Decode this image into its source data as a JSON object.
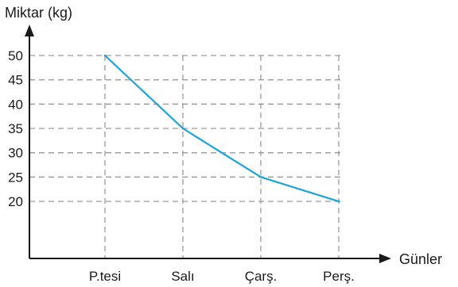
{
  "chart_data": {
    "type": "line",
    "ylabel": "Miktar (kg)",
    "xlabel": "Günler",
    "categories": [
      "P.tesi",
      "Salı",
      "Çarş.",
      "Perş."
    ],
    "yticks": [
      20,
      25,
      30,
      35,
      40,
      45,
      50
    ],
    "series": [
      {
        "values": [
          50,
          35,
          25,
          20
        ]
      }
    ],
    "grid": "dashed",
    "colors": {
      "line": "#1aa3dc",
      "grid": "#9a9a9a",
      "axis": "#1a1a1a"
    }
  }
}
